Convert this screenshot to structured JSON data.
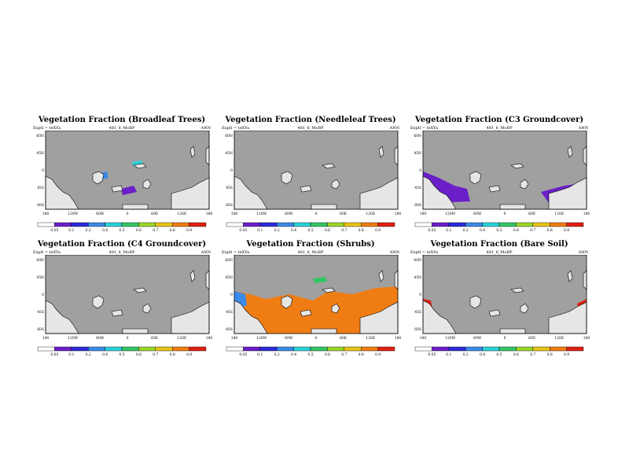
{
  "experiment_label": "Exptl = teXYa",
  "run_label": "481_6_MoBP",
  "season": "ANN",
  "map": {
    "lat_ticks": [
      "60N",
      "45N",
      "0",
      "45S",
      "60S"
    ],
    "lon_ticks": [
      "180",
      "120W",
      "60W",
      "0",
      "60E",
      "120E",
      "180"
    ]
  },
  "colorbar": {
    "levels": [
      "0.05",
      "0.1",
      "0.2",
      "0.4",
      "0.5",
      "0.6",
      "0.7",
      "0.8",
      "0.9"
    ],
    "colors": [
      "#ffffff",
      "#6a1fc8",
      "#2b2bd8",
      "#3a8ae8",
      "#2bd0d8",
      "#33c466",
      "#9ad62a",
      "#e6c21a",
      "#f07d14",
      "#e02010"
    ]
  },
  "colors": {
    "land_gray": "#a0a0a0",
    "ice": "#e6e6e6"
  },
  "chart_data": [
    {
      "type": "heatmap",
      "title": "Vegetation Fraction (Broadleaf Trees)",
      "pattern": "broadleaf"
    },
    {
      "type": "heatmap",
      "title": "Vegetation Fraction (Needleleaf Trees)",
      "pattern": "needleleaf"
    },
    {
      "type": "heatmap",
      "title": "Vegetation Fraction (C3 Groundcover)",
      "pattern": "c3"
    },
    {
      "type": "heatmap",
      "title": "Vegetation Fraction (C4 Groundcover)",
      "pattern": "c4"
    },
    {
      "type": "heatmap",
      "title": "Vegetation Fraction (Shrubs)",
      "pattern": "shrubs"
    },
    {
      "type": "heatmap",
      "title": "Vegetation Fraction (Bare Soil)",
      "pattern": "bare"
    }
  ]
}
